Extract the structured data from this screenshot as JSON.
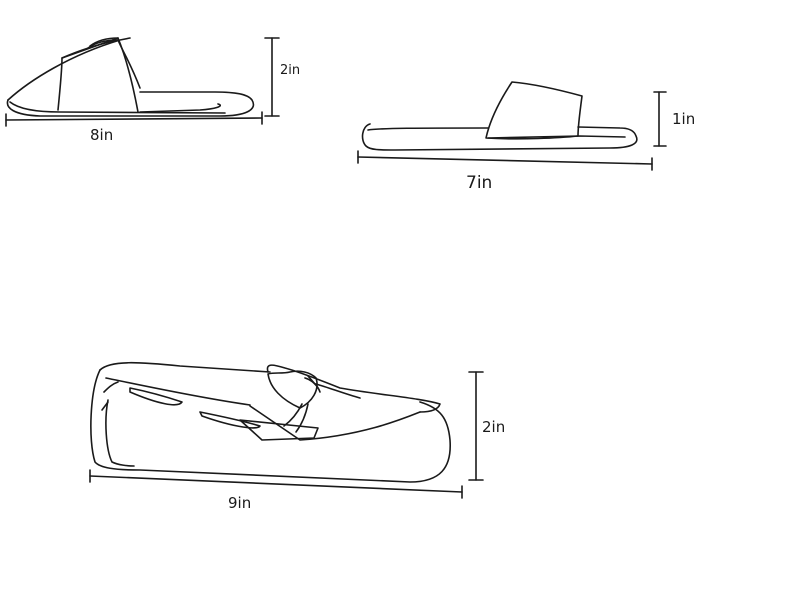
{
  "drawings": [
    {
      "name": "slipper",
      "length_label": "8in",
      "height_label": "2in"
    },
    {
      "name": "slide-sandal",
      "length_label": "7in",
      "height_label": "1in"
    },
    {
      "name": "moccasin-loafer",
      "length_label": "9in",
      "height_label": "2in"
    }
  ],
  "colors": {
    "ink": "#1a1a1a",
    "background": "#ffffff"
  }
}
